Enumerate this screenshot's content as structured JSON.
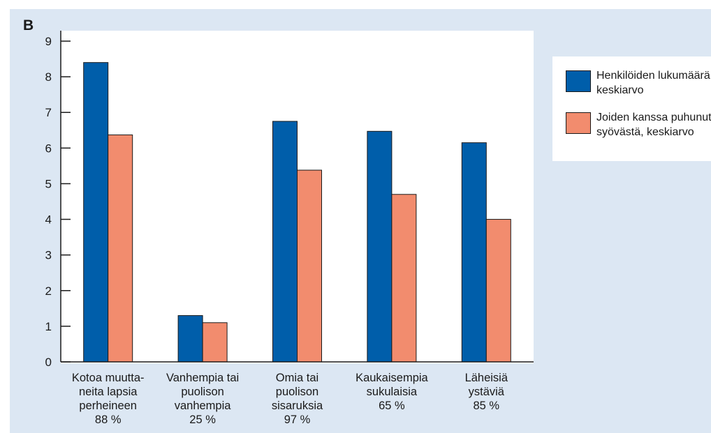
{
  "panel_letter": "B",
  "chart_data": {
    "type": "bar",
    "categories": [
      [
        "Kotoa muutta-",
        "neita lapsia",
        "perheineen",
        "88 %"
      ],
      [
        "Vanhempia tai",
        "puolison",
        "vanhempia",
        "25 %"
      ],
      [
        "Omia tai",
        "puolison",
        "sisaruksia",
        "97 %"
      ],
      [
        "Kaukaisempia",
        "sukulaisia",
        "65 %"
      ],
      [
        "Läheisiä",
        "ystäviä",
        "85 %"
      ]
    ],
    "series": [
      {
        "name": "Henkilöiden lukumäärä, keskiarvo",
        "color": "#005eaa",
        "values": [
          8.4,
          1.3,
          6.75,
          6.47,
          6.15
        ]
      },
      {
        "name": "Joiden kanssa puhunut syövästä, keskiarvo",
        "color": "#f28c6e",
        "values": [
          6.37,
          1.1,
          5.38,
          4.7,
          4.0
        ]
      }
    ],
    "yticks": [
      0,
      1,
      2,
      3,
      4,
      5,
      6,
      7,
      8,
      9
    ],
    "ylim": [
      0,
      9
    ],
    "grid": false,
    "legend_position": "right"
  }
}
